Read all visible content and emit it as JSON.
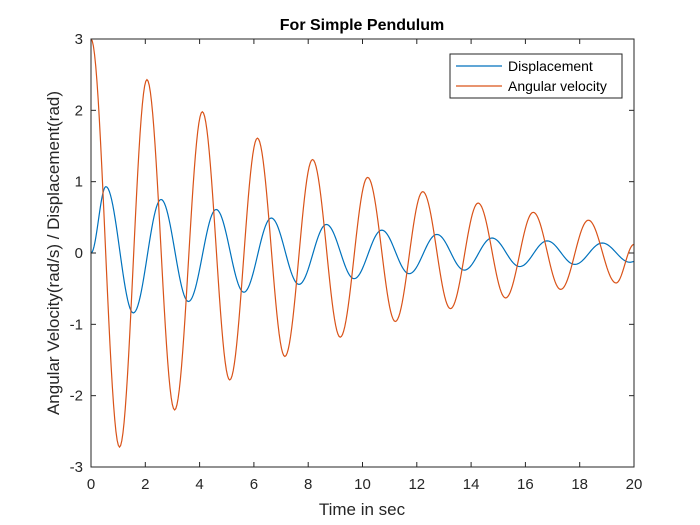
{
  "chart_data": {
    "type": "line",
    "title": "For Simple Pendulum",
    "xlabel": "Time in sec",
    "ylabel": "Angular Velocity(rad/s) / Displacement(rad)",
    "xlim": [
      0,
      20
    ],
    "ylim": [
      -3,
      3
    ],
    "xticks": [
      0,
      2,
      4,
      6,
      8,
      10,
      12,
      14,
      16,
      18,
      20
    ],
    "yticks": [
      -3,
      -2,
      -1,
      0,
      1,
      2,
      3
    ],
    "grid": false,
    "legend_position": "top-right",
    "series": [
      {
        "name": "Displacement",
        "color": "#0072BD",
        "x": [
          0,
          0.55,
          1.56,
          2.58,
          3.59,
          4.61,
          5.63,
          6.64,
          7.66,
          8.67,
          9.69,
          10.71,
          11.72,
          12.74,
          13.75,
          14.77,
          15.79,
          16.8,
          17.82,
          18.83,
          19.85,
          20
        ],
        "y": [
          0,
          0.93,
          -0.84,
          0.75,
          -0.68,
          0.61,
          -0.55,
          0.49,
          -0.44,
          0.4,
          -0.36,
          0.32,
          -0.29,
          0.26,
          -0.24,
          0.21,
          -0.19,
          0.17,
          -0.16,
          0.14,
          -0.13,
          -0.12
        ]
      },
      {
        "name": "Angular velocity",
        "color": "#D95319",
        "x": [
          0,
          1.05,
          2.06,
          3.08,
          4.1,
          5.11,
          6.13,
          7.14,
          8.16,
          9.18,
          10.19,
          11.21,
          12.22,
          13.24,
          14.26,
          15.27,
          16.29,
          17.3,
          18.32,
          19.34,
          20
        ],
        "y": [
          3.0,
          -2.72,
          2.43,
          -2.2,
          1.98,
          -1.78,
          1.61,
          -1.45,
          1.31,
          -1.18,
          1.06,
          -0.96,
          0.86,
          -0.78,
          0.7,
          -0.63,
          0.57,
          -0.51,
          0.46,
          -0.42,
          0.12
        ]
      }
    ]
  }
}
